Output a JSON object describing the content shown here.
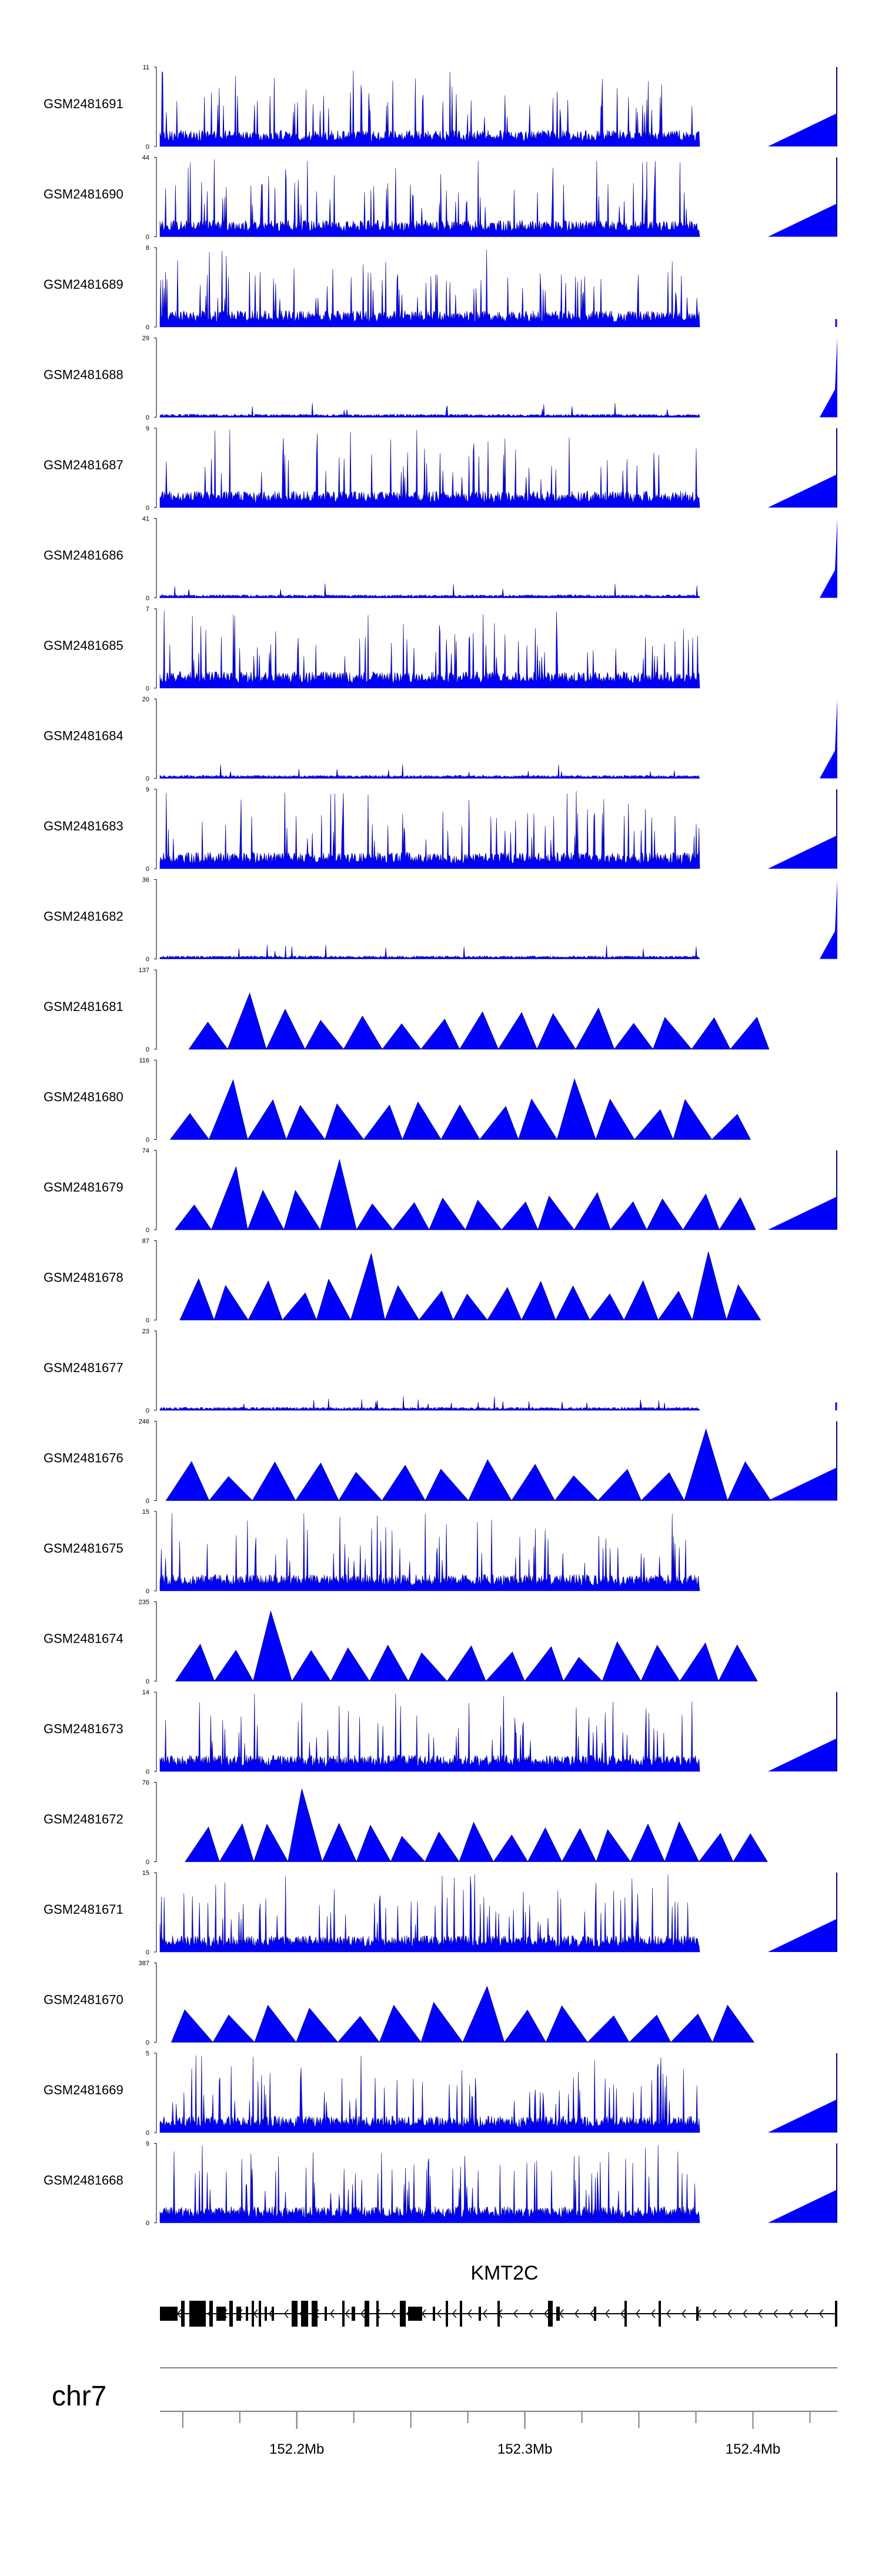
{
  "chart_data": {
    "type": "area",
    "chromosome": "chr7",
    "gene": {
      "name": "KMT2C",
      "strand": "-"
    },
    "x_axis": {
      "ticks": [
        152.2,
        152.3,
        152.4
      ],
      "tick_labels": [
        "152.2Mb",
        "152.3Mb",
        "152.4Mb"
      ],
      "range": [
        152.14,
        152.437
      ]
    },
    "tracks": [
      {
        "name": "GSM2481691",
        "max": 11,
        "pattern": "dense",
        "seed": 91,
        "tail": "rise"
      },
      {
        "name": "GSM2481690",
        "max": 44,
        "pattern": "dense",
        "seed": 90,
        "tail": "rise"
      },
      {
        "name": "GSM2481689",
        "max": 8,
        "pattern": "dense",
        "seed": 89,
        "tail": "flat"
      },
      {
        "name": "GSM2481688",
        "max": 29,
        "pattern": "low",
        "seed": 88,
        "tail": "spike"
      },
      {
        "name": "GSM2481687",
        "max": 9,
        "pattern": "dense",
        "seed": 87,
        "tail": "rise"
      },
      {
        "name": "GSM2481686",
        "max": 41,
        "pattern": "low",
        "seed": 86,
        "tail": "spike"
      },
      {
        "name": "GSM2481685",
        "max": 7,
        "pattern": "dense",
        "seed": 85,
        "tail": "none"
      },
      {
        "name": "GSM2481684",
        "max": 20,
        "pattern": "low",
        "seed": 84,
        "tail": "spike"
      },
      {
        "name": "GSM2481683",
        "max": 9,
        "pattern": "dense",
        "seed": 83,
        "tail": "rise"
      },
      {
        "name": "GSM2481682",
        "max": 36,
        "pattern": "low",
        "seed": 82,
        "tail": "spike"
      },
      {
        "name": "GSM2481681",
        "max": 137,
        "pattern": "sparse",
        "seed": 81,
        "tail": "none"
      },
      {
        "name": "GSM2481680",
        "max": 116,
        "pattern": "sparse",
        "seed": 80,
        "tail": "none"
      },
      {
        "name": "GSM2481679",
        "max": 74,
        "pattern": "sparse",
        "seed": 79,
        "tail": "rise"
      },
      {
        "name": "GSM2481678",
        "max": 87,
        "pattern": "sparse",
        "seed": 78,
        "tail": "none"
      },
      {
        "name": "GSM2481677",
        "max": 23,
        "pattern": "low",
        "seed": 77,
        "tail": "flat"
      },
      {
        "name": "GSM2481676",
        "max": 246,
        "pattern": "sparse",
        "seed": 76,
        "tail": "rise"
      },
      {
        "name": "GSM2481675",
        "max": 15,
        "pattern": "dense",
        "seed": 75,
        "tail": "none"
      },
      {
        "name": "GSM2481674",
        "max": 235,
        "pattern": "sparse",
        "seed": 74,
        "tail": "none"
      },
      {
        "name": "GSM2481673",
        "max": 14,
        "pattern": "dense",
        "seed": 73,
        "tail": "rise"
      },
      {
        "name": "GSM2481672",
        "max": 76,
        "pattern": "sparse",
        "seed": 72,
        "tail": "none"
      },
      {
        "name": "GSM2481671",
        "max": 15,
        "pattern": "dense",
        "seed": 71,
        "tail": "rise"
      },
      {
        "name": "GSM2481670",
        "max": 387,
        "pattern": "sparse",
        "seed": 70,
        "tail": "none"
      },
      {
        "name": "GSM2481669",
        "max": 5,
        "pattern": "dense",
        "seed": 69,
        "tail": "rise"
      },
      {
        "name": "GSM2481668",
        "max": 9,
        "pattern": "dense",
        "seed": 68,
        "tail": "rise"
      }
    ],
    "colors": {
      "signal": "#0000ff",
      "signal_line": "#000080",
      "gene": "#000000",
      "axis": "#808080"
    }
  }
}
